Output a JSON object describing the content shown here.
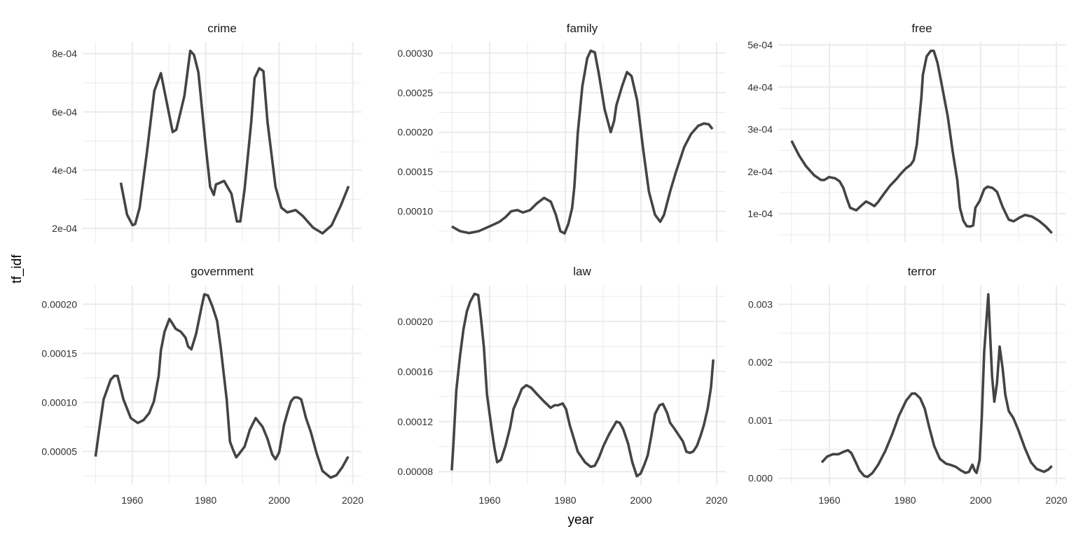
{
  "xlabel": "year",
  "ylabel": "tf_idf",
  "line_color": "#444444",
  "grid_color": "#ebebeb",
  "chart_data": [
    {
      "type": "line",
      "title": "crime",
      "xlim": [
        1946.5,
        2022.4
      ],
      "ylim": [
        0.000152,
        0.00084
      ],
      "x_ticks": [
        1960,
        1980,
        2000,
        2020
      ],
      "x_tick_labels": [
        "1960",
        "1980",
        "2000",
        "2020"
      ],
      "y_ticks": [
        0.0002,
        0.0004,
        0.0006,
        0.0008
      ],
      "y_tick_labels": [
        "2e-04",
        "4e-04",
        "6e-04",
        "8e-04"
      ],
      "x": [
        1956.9,
        1958.6,
        1960.1,
        1960.8,
        1962,
        1964,
        1966,
        1967.8,
        1971,
        1972,
        1974.2,
        1975.8,
        1976.8,
        1978,
        1979.9,
        1981.2,
        1982.2,
        1982.8,
        1985,
        1987,
        1988.5,
        1989.4,
        1990.6,
        1992.4,
        1993.3,
        1994.6,
        1995.7,
        1996.8,
        1999,
        2000.6,
        2002.2,
        2004.5,
        2006.4,
        2009.2,
        2011.8,
        2014.3,
        2016.8,
        2018.9
      ],
      "y": [
        0.000357,
        0.000247,
        0.000211,
        0.000215,
        0.000271,
        0.000463,
        0.000672,
        0.000733,
        0.000531,
        0.000539,
        0.000656,
        0.00081,
        0.000796,
        0.000736,
        0.000495,
        0.000343,
        0.000315,
        0.000351,
        0.000363,
        0.000319,
        0.000224,
        0.000224,
        0.000335,
        0.000567,
        0.000716,
        0.00075,
        0.00074,
        0.000567,
        0.000343,
        0.000271,
        0.000255,
        0.000263,
        0.000243,
        0.000203,
        0.000183,
        0.000211,
        0.000279,
        0.000345
      ]
    },
    {
      "type": "line",
      "title": "family",
      "xlim": [
        1946.5,
        2022.4
      ],
      "ylim": [
        6.07e-05,
        0.000314
      ],
      "x_ticks": [
        1960,
        1980,
        2000,
        2020
      ],
      "x_tick_labels": [
        "1960",
        "1980",
        "2000",
        "2020"
      ],
      "y_ticks": [
        0.0001,
        0.00015,
        0.0002,
        0.00025,
        0.0003
      ],
      "y_tick_labels": [
        "0.00010",
        "0.00015",
        "0.00020",
        "0.00025",
        "0.00030"
      ],
      "x": [
        1950,
        1952.2,
        1954.6,
        1957.1,
        1960.2,
        1962.6,
        1964.2,
        1965.7,
        1967.3,
        1968.8,
        1970.7,
        1972.5,
        1974.4,
        1976.2,
        1977.5,
        1978.7,
        1979.8,
        1980.8,
        1981.8,
        1982.4,
        1983.3,
        1984.5,
        1985.8,
        1986.7,
        1987.8,
        1988.9,
        1990.4,
        1992,
        1992.9,
        1993.5,
        1995,
        1996.3,
        1997.5,
        1999,
        2000.6,
        2002.1,
        2003.7,
        2005.1,
        2006.1,
        2007.7,
        2009.2,
        2011.4,
        2013.2,
        2015.1,
        2016.6,
        2017.9,
        2018.9
      ],
      "y": [
        8.08e-05,
        7.49e-05,
        7.25e-05,
        7.49e-05,
        8.14e-05,
        8.67e-05,
        9.26e-05,
        0.0001,
        0.0001015,
        9.85e-05,
        0.0001015,
        0.00011,
        0.000117,
        0.000112,
        9.56e-05,
        7.49e-05,
        7.2e-05,
        8.4e-05,
        0.000104,
        0.000131,
        0.000199,
        0.000258,
        0.0002935,
        0.000303,
        0.000301,
        0.000273,
        0.000229,
        0.0002,
        0.000214,
        0.000234,
        0.000258,
        0.000276,
        0.000271,
        0.00024,
        0.000178,
        0.000125,
        9.56e-05,
        8.67e-05,
        9.56e-05,
        0.000125,
        0.000149,
        0.000181,
        0.0001975,
        0.000208,
        0.000211,
        0.00021,
        0.000204
      ]
    },
    {
      "type": "line",
      "title": "free",
      "xlim": [
        1946.5,
        2022.4
      ],
      "ylim": [
        3.2e-05,
        0.000507
      ],
      "x_ticks": [
        1960,
        1980,
        2000,
        2020
      ],
      "x_tick_labels": [
        "1960",
        "1980",
        "2000",
        "2020"
      ],
      "y_ticks": [
        0.0001,
        0.0002,
        0.0003,
        0.0004,
        0.0005
      ],
      "y_tick_labels": [
        "1e-04",
        "2e-04",
        "3e-04",
        "4e-04",
        "5e-04"
      ],
      "x": [
        1950,
        1952,
        1953.8,
        1956,
        1957.8,
        1958.7,
        1959.9,
        1961.5,
        1962.7,
        1963.7,
        1964.6,
        1965.5,
        1967.1,
        1968.3,
        1969.7,
        1970.8,
        1971.9,
        1972.9,
        1974.4,
        1976,
        1977.8,
        1978.8,
        1980.3,
        1981.5,
        1982.3,
        1983.1,
        1983.7,
        1984.3,
        1984.7,
        1985.7,
        1986.8,
        1987.6,
        1988.6,
        1989.8,
        1991.3,
        1992.6,
        1993.8,
        1994.5,
        1995.4,
        1996.3,
        1997.2,
        1998,
        1998.6,
        1999.7,
        2000.9,
        2001.8,
        2003.1,
        2004.3,
        2005.8,
        2007.4,
        2008.7,
        2010.2,
        2011.7,
        2013.6,
        2015.4,
        2017.2,
        2018.8
      ],
      "y": [
        0.000273,
        0.000238,
        0.000213,
        0.000191,
        0.00018,
        0.00018,
        0.000187,
        0.000184,
        0.000177,
        0.000161,
        0.000136,
        0.000114,
        0.000108,
        0.000118,
        0.000129,
        0.000124,
        0.000118,
        0.000128,
        0.000147,
        0.000166,
        0.000183,
        0.000194,
        0.000208,
        0.000216,
        0.000227,
        0.000263,
        0.000318,
        0.000374,
        0.000429,
        0.000473,
        0.000486,
        0.000486,
        0.000457,
        0.000401,
        0.00033,
        0.000247,
        0.00018,
        0.000114,
        8.33e-05,
        7.06e-05,
        6.95e-05,
        7.22e-05,
        0.000114,
        0.00013,
        0.000158,
        0.000164,
        0.000161,
        0.000152,
        0.000116,
        8.6e-05,
        8.2e-05,
        9.05e-05,
        9.7e-05,
        9.3e-05,
        8.3e-05,
        6.95e-05,
        5.4e-05
      ]
    },
    {
      "type": "line",
      "title": "government",
      "xlim": [
        1946.5,
        2022.4
      ],
      "ylim": [
        1.6e-05,
        0.0002195
      ],
      "x_ticks": [
        1960,
        1980,
        2000,
        2020
      ],
      "x_tick_labels": [
        "1960",
        "1980",
        "2000",
        "2020"
      ],
      "y_ticks": [
        5e-05,
        0.0001,
        0.00015,
        0.0002
      ],
      "y_tick_labels": [
        "0.00005",
        "0.00010",
        "0.00015",
        "0.00020"
      ],
      "x": [
        1950,
        1951,
        1952.2,
        1954.1,
        1955.1,
        1956,
        1957.6,
        1959.6,
        1961.5,
        1963.1,
        1964.6,
        1965.9,
        1967.2,
        1967.8,
        1968.8,
        1970.1,
        1971,
        1971.8,
        1973.2,
        1974.5,
        1975.2,
        1976.1,
        1977.4,
        1978.7,
        1979.6,
        1980.6,
        1981.8,
        1983.1,
        1984.1,
        1985.7,
        1986.6,
        1987.5,
        1988.3,
        1989.2,
        1990.6,
        1992,
        1993.6,
        1995.5,
        1996.8,
        1998.1,
        1999,
        2000,
        2001.3,
        2002.2,
        2003.2,
        2004.1,
        2005.1,
        2006,
        2007.3,
        2008.6,
        2010.2,
        2011.8,
        2014,
        2015.6,
        2017.2,
        2018.8
      ],
      "y": [
        4.48e-05,
        7.2e-05,
        0.000103,
        0.000123,
        0.000127,
        0.000127,
        0.000103,
        8.4e-05,
        7.9e-05,
        8.2e-05,
        8.9e-05,
        0.000101,
        0.000127,
        0.000153,
        0.000172,
        0.000185,
        0.00018,
        0.000175,
        0.000172,
        0.000166,
        0.000157,
        0.000154,
        0.00017,
        0.000194,
        0.00021,
        0.000209,
        0.000198,
        0.000183,
        0.000155,
        0.000103,
        6e-05,
        5.1e-05,
        4.4e-05,
        4.8e-05,
        5.5e-05,
        7.2e-05,
        8.4e-05,
        7.5e-05,
        6.3e-05,
        4.7e-05,
        4.2e-05,
        4.9e-05,
        7.7e-05,
        8.9e-05,
        0.000101,
        0.000105,
        0.000105,
        0.000103,
        8.4e-05,
        7e-05,
        4.8e-05,
        3e-05,
        2.33e-05,
        2.57e-05,
        3.4e-05,
        4.48e-05
      ]
    },
    {
      "type": "line",
      "title": "law",
      "xlim": [
        1946.5,
        2022.4
      ],
      "ylim": [
        6.95e-05,
        0.000229
      ],
      "x_ticks": [
        1960,
        1980,
        2000,
        2020
      ],
      "x_tick_labels": [
        "1960",
        "1980",
        "2000",
        "2020"
      ],
      "y_ticks": [
        8e-05,
        0.00012,
        0.00016,
        0.0002
      ],
      "y_tick_labels": [
        "0.00008",
        "0.00012",
        "0.00016",
        "0.00020"
      ],
      "x": [
        1950,
        1950.4,
        1951.2,
        1952.2,
        1953.1,
        1954,
        1954.9,
        1956,
        1957,
        1957.7,
        1958.5,
        1959.3,
        1960.5,
        1961.3,
        1962,
        1963,
        1964.2,
        1965.4,
        1966.3,
        1967.3,
        1968.5,
        1969.7,
        1971,
        1972.5,
        1974.4,
        1976.1,
        1977.2,
        1978.1,
        1979.3,
        1980.2,
        1981.2,
        1982.1,
        1983.3,
        1985.2,
        1986.7,
        1987.8,
        1988.9,
        1990.1,
        1991.6,
        1993.5,
        1994.4,
        1995.3,
        1996.6,
        1997.7,
        1998.9,
        1999.9,
        2000.9,
        2001.8,
        2002.7,
        2003.7,
        2004.9,
        2005.8,
        2006.9,
        2007.7,
        2008.9,
        2011.1,
        2012,
        2012.9,
        2013.8,
        2014.8,
        2015.8,
        2016.6,
        2017.6,
        2018.5,
        2019.1
      ],
      "y": [
        8.1e-05,
        0.0001006,
        0.000145,
        0.000173,
        0.000194,
        0.000208,
        0.000216,
        0.000222,
        0.000221,
        0.000203,
        0.000179,
        0.000142,
        0.000115,
        9.87e-05,
        8.75e-05,
        8.94e-05,
        0.0001006,
        0.000115,
        0.00013,
        0.000137,
        0.000146,
        0.000149,
        0.000147,
        0.000142,
        0.000136,
        0.000131,
        0.000133,
        0.000133,
        0.0001345,
        0.00013,
        0.000117,
        0.000108,
        9.59e-05,
        8.75e-05,
        8.38e-05,
        8.47e-05,
        9.12e-05,
        0.0001006,
        0.00011,
        0.00012,
        0.000119,
        0.000114,
        0.0001024,
        8.75e-05,
        7.63e-05,
        7.85e-05,
        8.56e-05,
        9.31e-05,
        0.000108,
        0.000126,
        0.000133,
        0.000134,
        0.000127,
        0.000119,
        0.000114,
        0.000104,
        9.59e-05,
        9.5e-05,
        9.6e-05,
        0.0001006,
        0.000109,
        0.000117,
        0.00013,
        0.000147,
        0.0001696
      ]
    },
    {
      "type": "line",
      "title": "terror",
      "xlim": [
        1946.5,
        2022.4
      ],
      "ylim": [
        -0.000112,
        0.00333
      ],
      "x_ticks": [
        1960,
        1980,
        2000,
        2020
      ],
      "x_tick_labels": [
        "1960",
        "1980",
        "2000",
        "2020"
      ],
      "y_ticks": [
        0,
        0.001,
        0.002,
        0.003
      ],
      "y_tick_labels": [
        "0.000",
        "0.001",
        "0.002",
        "0.003"
      ],
      "x": [
        1958,
        1959.4,
        1960.9,
        1962.4,
        1963.7,
        1964.9,
        1965.8,
        1966.7,
        1968,
        1969.2,
        1970.1,
        1971.4,
        1972.9,
        1974.8,
        1976.6,
        1978.4,
        1980.3,
        1981.8,
        1982.7,
        1984,
        1985.2,
        1986.4,
        1987.7,
        1989.2,
        1990.8,
        1992.3,
        1993.5,
        1994.8,
        1996,
        1996.9,
        1997.8,
        1998.4,
        1998.9,
        1999.7,
        2000.3,
        2000.9,
        2002,
        2002.5,
        2003,
        2003.6,
        2004.3,
        2005,
        2005.8,
        2006.5,
        2007.4,
        2008.6,
        2009.9,
        2011.7,
        2013.3,
        2014.8,
        2016.7,
        2017.9,
        2018.8
      ],
      "y": [
        0.000274,
        0.000374,
        0.000414,
        0.000414,
        0.000455,
        0.000483,
        0.000435,
        0.000314,
        0.000133,
        4e-05,
        2.4e-05,
        9.2e-05,
        0.000233,
        0.000475,
        0.000757,
        0.00108,
        0.00134,
        0.00146,
        0.00146,
        0.00138,
        0.0012,
        0.000878,
        0.000555,
        0.000334,
        0.000253,
        0.000225,
        0.000193,
        0.000133,
        9.2e-05,
        0.000112,
        0.000233,
        0.000133,
        9.2e-05,
        0.000314,
        0.00108,
        0.00217,
        0.00317,
        0.00245,
        0.00176,
        0.00132,
        0.00164,
        0.00227,
        0.00189,
        0.00144,
        0.00116,
        0.00104,
        0.000837,
        0.000515,
        0.000274,
        0.000161,
        0.000112,
        0.000153,
        0.000213
      ]
    }
  ]
}
